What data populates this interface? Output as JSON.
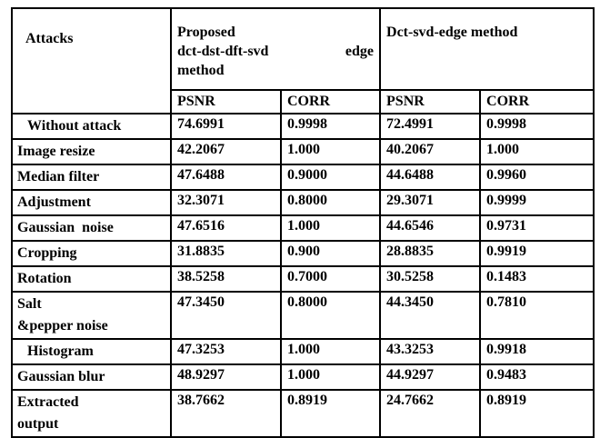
{
  "table": {
    "border_color": "#000000",
    "text_color": "#000000",
    "background": "#ffffff",
    "header": {
      "attacks": "Attacks",
      "method1_lines": [
        "Proposed",
        "dct-dst-dft-svd edge",
        "method"
      ],
      "method2": "Dct-svd-edge method",
      "col_headers": [
        "PSNR",
        "CORR",
        "PSNR",
        "CORR"
      ]
    },
    "rows": [
      {
        "label": "Without attack",
        "psnr1": "74.6991",
        "corr1": "0.9998",
        "psnr2": "72.4991",
        "corr2": "0.9998"
      },
      {
        "label": "Image resize",
        "psnr1": "42.2067",
        "corr1": "1.000",
        "psnr2": "40.2067",
        "corr2": "1.000"
      },
      {
        "label": "Median filter",
        "psnr1": "47.6488",
        "corr1": "0.9000",
        "psnr2": "44.6488",
        "corr2": "0.9960"
      },
      {
        "label": "Adjustment",
        "psnr1": "32.3071",
        "corr1": "0.8000",
        "psnr2": "29.3071",
        "corr2": "0.9999"
      },
      {
        "label": "Gaussian  noise",
        "psnr1": "47.6516",
        "corr1": "1.000",
        "psnr2": "44.6546",
        "corr2": "0.9731"
      },
      {
        "label": "Cropping",
        "psnr1": "31.8835",
        "corr1": "0.900",
        "psnr2": "28.8835",
        "corr2": "0.9919"
      },
      {
        "label": "Rotation",
        "psnr1": "38.5258",
        "corr1": "0.7000",
        "psnr2": "30.5258",
        "corr2": "0.1483"
      },
      {
        "label": "Salt",
        "label2": "&pepper noise",
        "psnr1": "47.3450",
        "corr1": "0.8000",
        "psnr2": "44.3450",
        "corr2": "0.7810"
      },
      {
        "label": "Histogram",
        "psnr1": "47.3253",
        "corr1": "1.000",
        "psnr2": "43.3253",
        "corr2": "0.9918"
      },
      {
        "label": "Gaussian blur",
        "psnr1": "48.9297",
        "corr1": "1.000",
        "psnr2": "44.9297",
        "corr2": "0.9483"
      },
      {
        "label": "Extracted",
        "label2": "output",
        "psnr1": "38.7662",
        "corr1": "0.8919",
        "psnr2": "24.7662",
        "corr2": "0.8919"
      }
    ]
  }
}
